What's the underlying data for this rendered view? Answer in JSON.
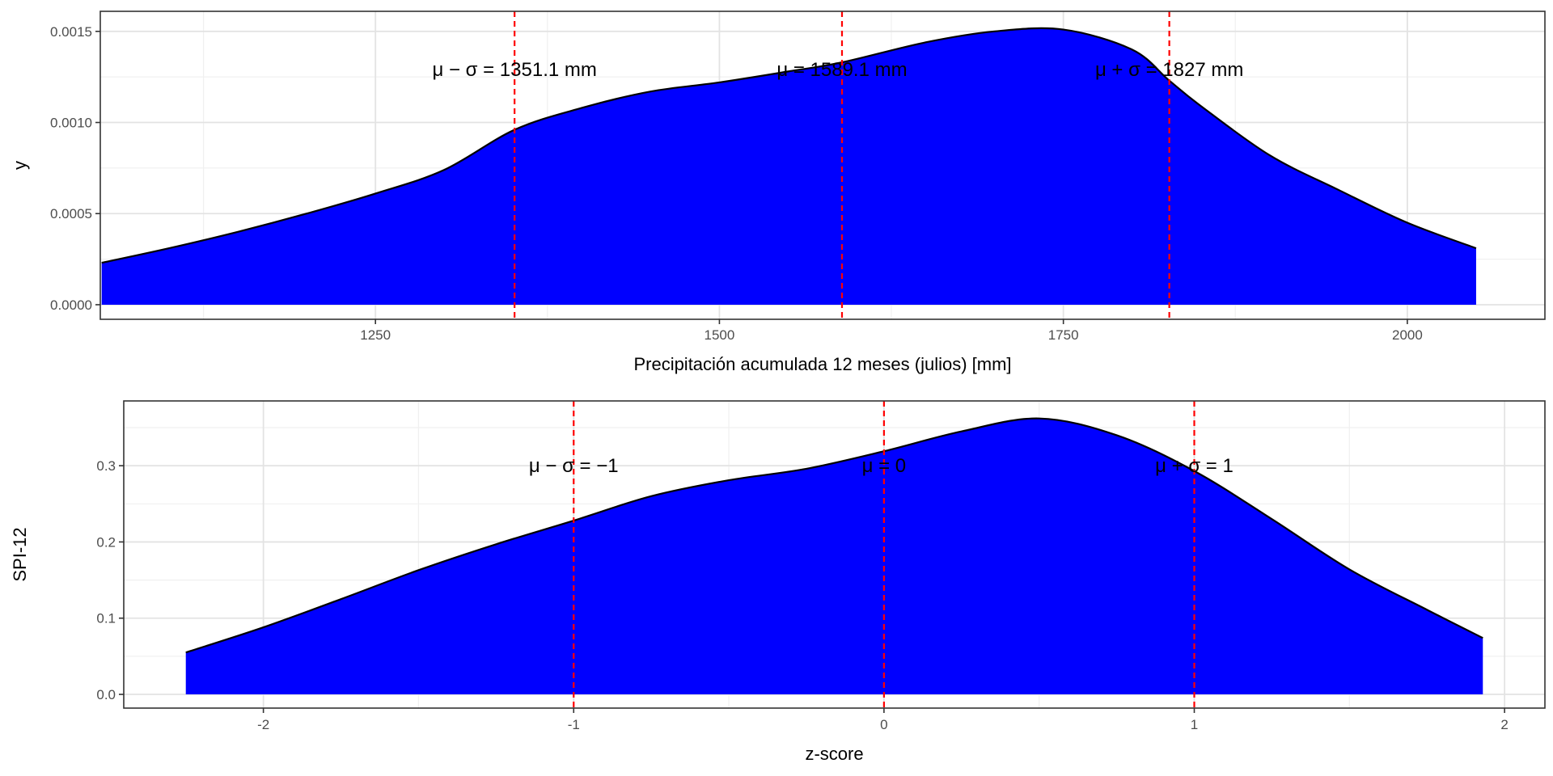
{
  "chart_data": [
    {
      "type": "area",
      "xlabel": "Precipitación acumulada 12 meses (julios) [mm]",
      "ylabel": "y",
      "xlim": [
        1050,
        2100
      ],
      "ylim": [
        -8e-05,
        0.00161
      ],
      "xticks": [
        1250,
        1500,
        1750,
        2000
      ],
      "xtick_labels": [
        "1250",
        "1500",
        "1750",
        "2000"
      ],
      "yticks": [
        0,
        0.0005,
        0.001,
        0.0015
      ],
      "ytick_labels": [
        "0.0000",
        "0.0005",
        "0.0010",
        "0.0015"
      ],
      "grid": true,
      "fill_color": "#0000ff",
      "outline_color": "#000000",
      "reference_color": "#ff0000",
      "x": [
        1051,
        1100,
        1150,
        1200,
        1250,
        1300,
        1351.1,
        1400,
        1450,
        1500,
        1550,
        1589.1,
        1650,
        1700,
        1750,
        1800,
        1827,
        1850,
        1900,
        1950,
        2000,
        2050
      ],
      "y": [
        0.00023,
        0.00031,
        0.0004,
        0.0005,
        0.00061,
        0.00074,
        0.00096,
        0.00108,
        0.00117,
        0.00122,
        0.00128,
        0.00133,
        0.00144,
        0.0015,
        0.00151,
        0.0014,
        0.00123,
        0.00109,
        0.00082,
        0.00063,
        0.00045,
        0.00031
      ],
      "reference_lines": [
        {
          "x": 1351.1,
          "label": "μ − σ = 1351.1 mm"
        },
        {
          "x": 1589.1,
          "label": "μ = 1589.1 mm"
        },
        {
          "x": 1827,
          "label": "μ + σ = 1827 mm"
        }
      ],
      "label_y": 0.00129
    },
    {
      "type": "area",
      "xlabel": "z-score",
      "ylabel": "SPI-12",
      "xlim": [
        -2.45,
        2.13
      ],
      "ylim": [
        -0.018,
        0.385
      ],
      "xticks": [
        -2,
        -1,
        0,
        1,
        2
      ],
      "xtick_labels": [
        "-2",
        "-1",
        "0",
        "1",
        "2"
      ],
      "yticks": [
        0,
        0.1,
        0.2,
        0.3
      ],
      "ytick_labels": [
        "0.0",
        "0.1",
        "0.2",
        "0.3"
      ],
      "grid": true,
      "fill_color": "#0000ff",
      "outline_color": "#000000",
      "reference_color": "#ff0000",
      "x": [
        -2.25,
        -2.0,
        -1.75,
        -1.5,
        -1.25,
        -1.0,
        -0.75,
        -0.5,
        -0.25,
        0.0,
        0.25,
        0.5,
        0.75,
        1.0,
        1.25,
        1.5,
        1.75,
        1.93
      ],
      "y": [
        0.055,
        0.088,
        0.125,
        0.163,
        0.197,
        0.228,
        0.26,
        0.281,
        0.296,
        0.319,
        0.345,
        0.362,
        0.34,
        0.293,
        0.23,
        0.164,
        0.111,
        0.074
      ],
      "reference_lines": [
        {
          "x": -1,
          "label": "μ − σ = −1"
        },
        {
          "x": 0,
          "label": "μ = 0"
        },
        {
          "x": 1,
          "label": "μ + σ = 1"
        }
      ],
      "label_y": 0.3
    }
  ]
}
